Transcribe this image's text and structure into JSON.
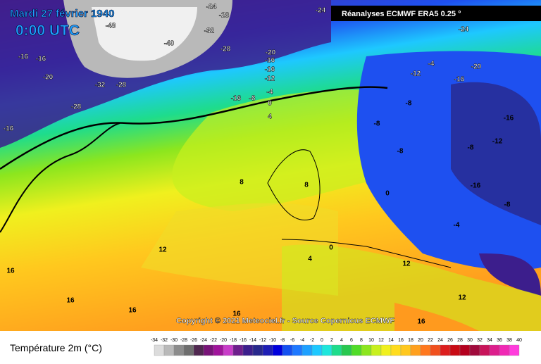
{
  "header": {
    "title": "Mardi 27 février 1940",
    "time": "0:00 UTC",
    "source_box": "Réanalyses ECMWF ERA5 0.25 °",
    "copyright": "Copyright © 2021 Meteociel.fr - Source Copernicus ECMWF"
  },
  "legend": {
    "title": "Température 2m (°C)",
    "ticks": [
      -34,
      -32,
      -30,
      -28,
      -26,
      -24,
      -22,
      -20,
      -18,
      -16,
      -14,
      -12,
      -10,
      -8,
      -6,
      -4,
      -2,
      0,
      2,
      4,
      6,
      8,
      10,
      12,
      14,
      16,
      18,
      20,
      22,
      24,
      26,
      28,
      30,
      32,
      34,
      36,
      38,
      40
    ],
    "colors": [
      "#dcdcdc",
      "#b9b9b9",
      "#8c8c8c",
      "#6e6e6e",
      "#502850",
      "#781478",
      "#a0149b",
      "#c83cc8",
      "#6e1e8c",
      "#3c1e8c",
      "#28288c",
      "#1e1eb4",
      "#0000dc",
      "#1450f0",
      "#1e78ff",
      "#1ea0ff",
      "#1ec8ff",
      "#1ee6dc",
      "#1edc8c",
      "#28c850",
      "#50dc28",
      "#8ce61e",
      "#c8f01e",
      "#f0f01e",
      "#ffdc1e",
      "#ffc81e",
      "#ffa01e",
      "#ff781e",
      "#f0501e",
      "#dc1e1e",
      "#c80a14",
      "#b4001e",
      "#a00a3c",
      "#c8145a",
      "#dc1e8c",
      "#f028b4",
      "#ff3cdc"
    ]
  },
  "map": {
    "labels": [
      -24,
      -28,
      -24,
      -24,
      -48,
      -32,
      -40,
      -28,
      -16,
      -16,
      -20,
      -16,
      -16,
      -12,
      -20,
      -32,
      -28,
      -28,
      -16,
      -8,
      -4,
      0,
      4,
      -16,
      -12,
      -4,
      -20,
      -16,
      -8,
      -16,
      -8,
      -12,
      -8,
      -8,
      8,
      8,
      -16,
      -8,
      12,
      16,
      16,
      16,
      16,
      12,
      16,
      0,
      -4,
      4,
      0,
      12
    ]
  }
}
